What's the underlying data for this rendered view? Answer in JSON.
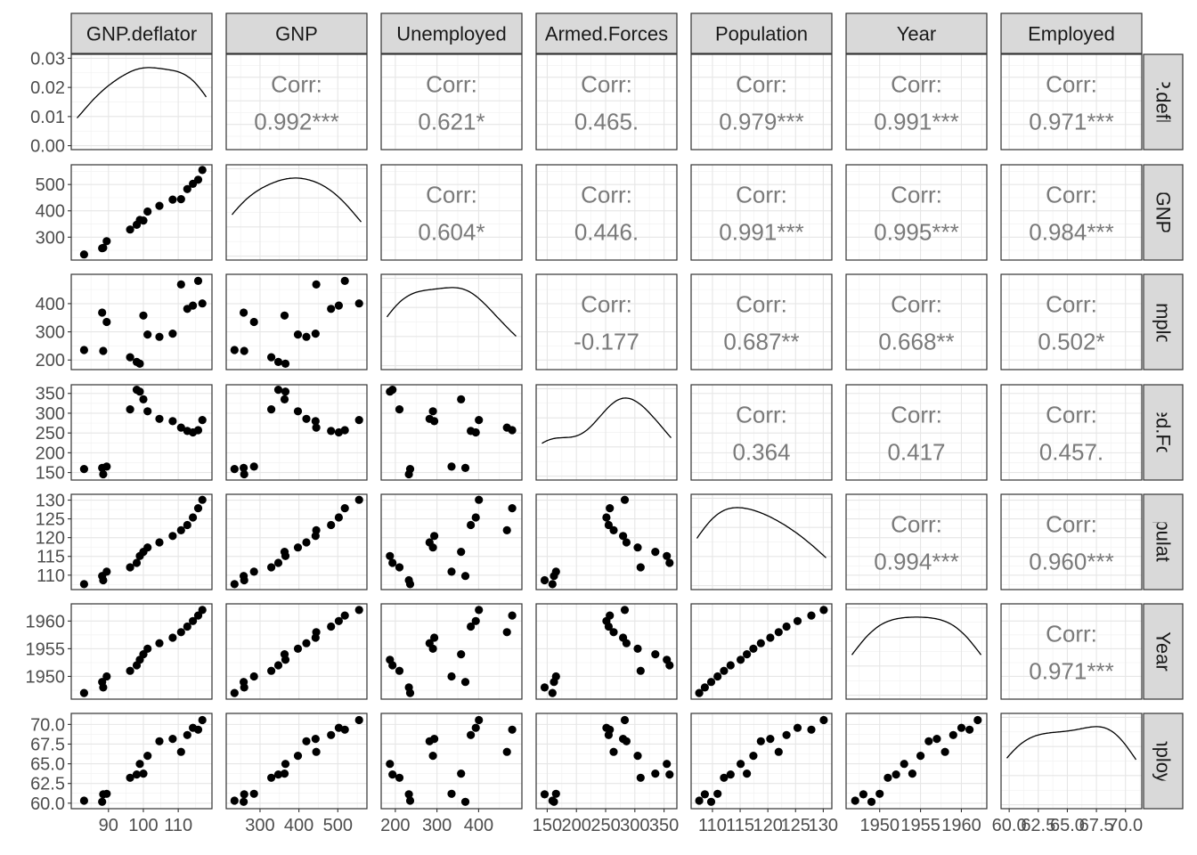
{
  "chart_data": {
    "type": "scatter-matrix",
    "variables": [
      "GNP.deflator",
      "GNP",
      "Unemployed",
      "Armed.Forces",
      "Population",
      "Year",
      "Employed"
    ],
    "row_strip_labels": [
      "GNP.deflator",
      "GNP",
      "Unemployed",
      "Armed.Forces",
      "Population",
      "Year",
      "Employed"
    ],
    "corr_label": "Corr:",
    "correlations": [
      {
        "row": 0,
        "col": 1,
        "value": "0.992***"
      },
      {
        "row": 0,
        "col": 2,
        "value": "0.621*"
      },
      {
        "row": 0,
        "col": 3,
        "value": "0.465."
      },
      {
        "row": 0,
        "col": 4,
        "value": "0.979***"
      },
      {
        "row": 0,
        "col": 5,
        "value": "0.991***"
      },
      {
        "row": 0,
        "col": 6,
        "value": "0.971***"
      },
      {
        "row": 1,
        "col": 2,
        "value": "0.604*"
      },
      {
        "row": 1,
        "col": 3,
        "value": "0.446."
      },
      {
        "row": 1,
        "col": 4,
        "value": "0.991***"
      },
      {
        "row": 1,
        "col": 5,
        "value": "0.995***"
      },
      {
        "row": 1,
        "col": 6,
        "value": "0.984***"
      },
      {
        "row": 2,
        "col": 3,
        "value": "-0.177"
      },
      {
        "row": 2,
        "col": 4,
        "value": "0.687**"
      },
      {
        "row": 2,
        "col": 5,
        "value": "0.668**"
      },
      {
        "row": 2,
        "col": 6,
        "value": "0.502*"
      },
      {
        "row": 3,
        "col": 4,
        "value": "0.364"
      },
      {
        "row": 3,
        "col": 5,
        "value": "0.417"
      },
      {
        "row": 3,
        "col": 6,
        "value": "0.457."
      },
      {
        "row": 4,
        "col": 5,
        "value": "0.994***"
      },
      {
        "row": 4,
        "col": 6,
        "value": "0.960***"
      },
      {
        "row": 5,
        "col": 6,
        "value": "0.971***"
      }
    ],
    "axes": [
      {
        "name": "GNP.deflator",
        "range": [
          81,
          118
        ],
        "ticks": [
          "90",
          "100",
          "110"
        ],
        "tick_values": [
          90,
          100,
          110
        ]
      },
      {
        "name": "GNP",
        "range": [
          228,
          560
        ],
        "ticks": [
          "300",
          "400",
          "500"
        ],
        "tick_values": [
          300,
          400,
          500
        ]
      },
      {
        "name": "Unemployed",
        "range": [
          180,
          490
        ],
        "ticks": [
          "200",
          "300",
          "400"
        ],
        "tick_values": [
          200,
          300,
          400
        ]
      },
      {
        "name": "Armed.Forces",
        "range": [
          141,
          362
        ],
        "ticks": [
          "150",
          "200",
          "250",
          "300",
          "350"
        ],
        "tick_values": [
          150,
          200,
          250,
          300,
          350
        ]
      },
      {
        "name": "Population",
        "range": [
          107.2,
          130.5
        ],
        "ticks": [
          "110",
          "115",
          "120",
          "125",
          "130"
        ],
        "tick_values": [
          110,
          115,
          120,
          125,
          130
        ]
      },
      {
        "name": "Year",
        "range": [
          1946.6,
          1962.4
        ],
        "ticks": [
          "1950",
          "1955",
          "1960"
        ],
        "tick_values": [
          1950,
          1955,
          1960
        ]
      },
      {
        "name": "Employed",
        "range": [
          59.8,
          70.9
        ],
        "ticks": [
          "60.0",
          "62.5",
          "65.0",
          "67.5",
          "70.0"
        ],
        "tick_values": [
          60.0,
          62.5,
          65.0,
          67.5,
          70.0
        ]
      }
    ],
    "density_axis": {
      "range": [
        0,
        0.03
      ],
      "ticks": [
        "0.00",
        "0.01",
        "0.02",
        "0.03"
      ],
      "tick_values": [
        0,
        0.01,
        0.02,
        0.03
      ]
    },
    "observations": [
      {
        "GNP.deflator": 83.0,
        "GNP": 234.289,
        "Unemployed": 235.6,
        "Armed.Forces": 159.0,
        "Population": 107.608,
        "Year": 1947,
        "Employed": 60.323
      },
      {
        "GNP.deflator": 88.5,
        "GNP": 259.426,
        "Unemployed": 232.5,
        "Armed.Forces": 145.6,
        "Population": 108.632,
        "Year": 1948,
        "Employed": 61.122
      },
      {
        "GNP.deflator": 88.2,
        "GNP": 258.054,
        "Unemployed": 368.2,
        "Armed.Forces": 161.6,
        "Population": 109.773,
        "Year": 1949,
        "Employed": 60.171
      },
      {
        "GNP.deflator": 89.5,
        "GNP": 284.599,
        "Unemployed": 335.1,
        "Armed.Forces": 165.0,
        "Population": 110.929,
        "Year": 1950,
        "Employed": 61.187
      },
      {
        "GNP.deflator": 96.2,
        "GNP": 328.975,
        "Unemployed": 209.9,
        "Armed.Forces": 309.9,
        "Population": 112.075,
        "Year": 1951,
        "Employed": 63.221
      },
      {
        "GNP.deflator": 98.1,
        "GNP": 346.999,
        "Unemployed": 193.2,
        "Armed.Forces": 359.4,
        "Population": 113.27,
        "Year": 1952,
        "Employed": 63.639
      },
      {
        "GNP.deflator": 99.0,
        "GNP": 365.385,
        "Unemployed": 187.0,
        "Armed.Forces": 354.7,
        "Population": 115.094,
        "Year": 1953,
        "Employed": 64.989
      },
      {
        "GNP.deflator": 100.0,
        "GNP": 363.112,
        "Unemployed": 357.8,
        "Armed.Forces": 335.0,
        "Population": 116.219,
        "Year": 1954,
        "Employed": 63.761
      },
      {
        "GNP.deflator": 101.2,
        "GNP": 397.469,
        "Unemployed": 290.4,
        "Armed.Forces": 304.8,
        "Population": 117.388,
        "Year": 1955,
        "Employed": 66.019
      },
      {
        "GNP.deflator": 104.6,
        "GNP": 419.18,
        "Unemployed": 282.2,
        "Armed.Forces": 285.7,
        "Population": 118.734,
        "Year": 1956,
        "Employed": 67.857
      },
      {
        "GNP.deflator": 108.4,
        "GNP": 442.769,
        "Unemployed": 293.6,
        "Armed.Forces": 279.8,
        "Population": 120.445,
        "Year": 1957,
        "Employed": 68.169
      },
      {
        "GNP.deflator": 110.8,
        "GNP": 444.546,
        "Unemployed": 468.1,
        "Armed.Forces": 263.7,
        "Population": 121.95,
        "Year": 1958,
        "Employed": 66.513
      },
      {
        "GNP.deflator": 112.6,
        "GNP": 482.704,
        "Unemployed": 381.3,
        "Armed.Forces": 255.2,
        "Population": 123.366,
        "Year": 1959,
        "Employed": 68.655
      },
      {
        "GNP.deflator": 114.2,
        "GNP": 502.601,
        "Unemployed": 393.1,
        "Armed.Forces": 251.4,
        "Population": 125.368,
        "Year": 1960,
        "Employed": 69.564
      },
      {
        "GNP.deflator": 115.7,
        "GNP": 518.173,
        "Unemployed": 480.6,
        "Armed.Forces": 257.2,
        "Population": 127.852,
        "Year": 1961,
        "Employed": 69.331
      },
      {
        "GNP.deflator": 116.9,
        "GNP": 554.894,
        "Unemployed": 400.7,
        "Armed.Forces": 282.7,
        "Population": 130.081,
        "Year": 1962,
        "Employed": 70.551
      }
    ],
    "grid": true,
    "legend": "none"
  }
}
